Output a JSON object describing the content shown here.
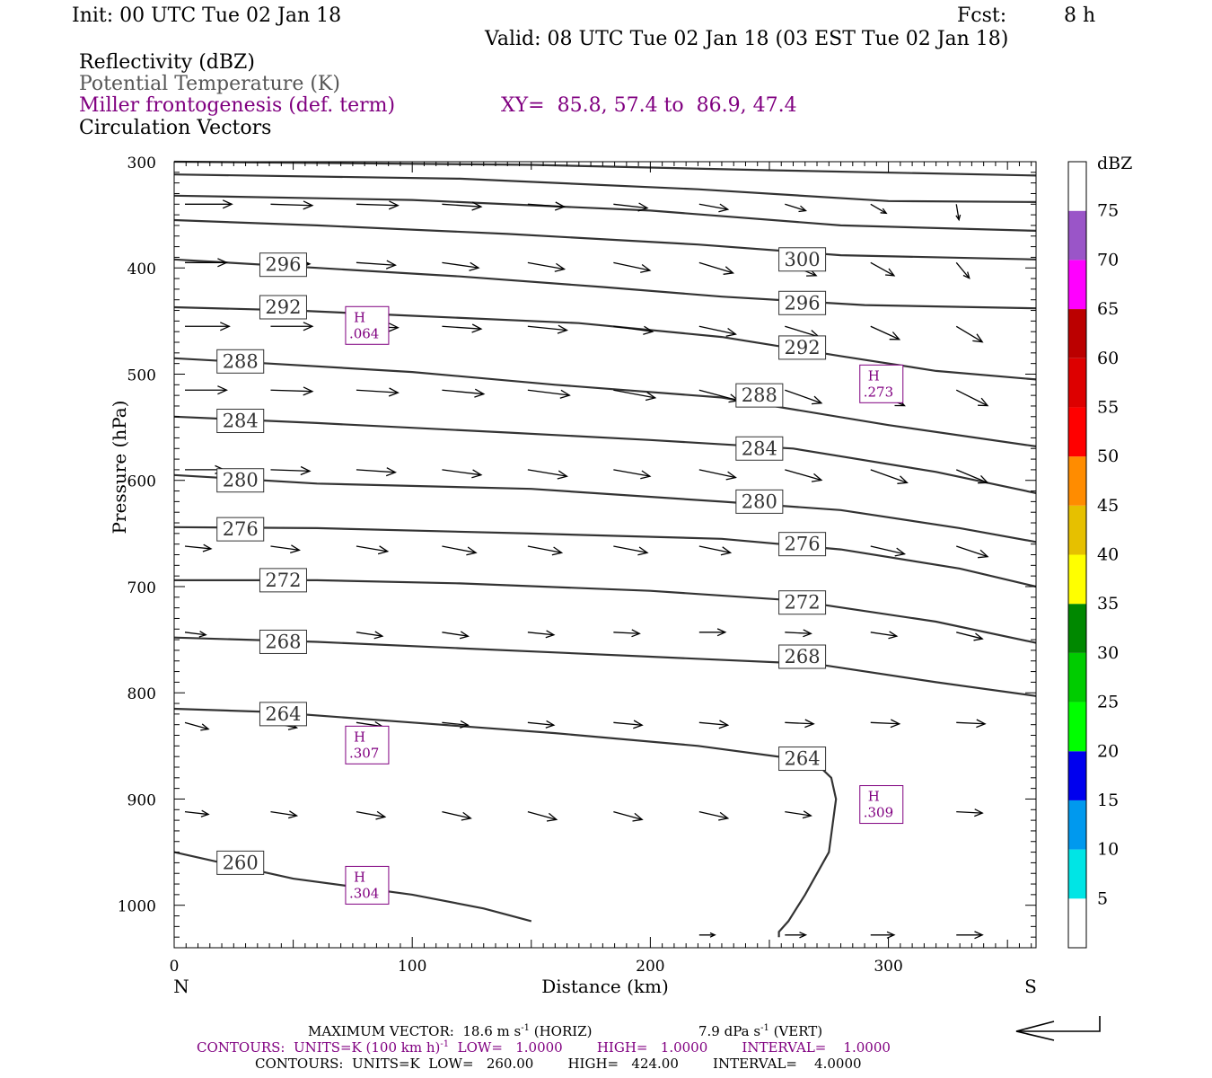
{
  "header": {
    "init": "Init: 00 UTC Tue 02 Jan 18",
    "fcst_label": "Fcst:",
    "fcst_value": "8 h",
    "valid": "Valid: 08 UTC Tue 02 Jan 18 (03 EST Tue 02 Jan 18)"
  },
  "fields": {
    "reflectivity": "Reflectivity (dBZ)",
    "theta": "Potential Temperature (K)",
    "miller": "Miller frontogenesis (def. term)",
    "xy": "XY=  85.8, 57.4 to  86.9, 47.4",
    "circ": "Circulation Vectors"
  },
  "colors": {
    "purple": "#800080",
    "theta_contour": "#333333",
    "vector": "#000000"
  },
  "chart_data": {
    "type": "cross-section",
    "xlabel": "Distance (km)",
    "ylabel": "Pressure (hPa)",
    "x_range": [
      0,
      362
    ],
    "y_range_hpa": [
      300,
      1040
    ],
    "x_ticks": [
      "0",
      "100",
      "200",
      "300"
    ],
    "x_tick_values": [
      0,
      100,
      200,
      300
    ],
    "y_ticks": [
      "300",
      "400",
      "500",
      "600",
      "700",
      "800",
      "900",
      "1000"
    ],
    "y_tick_values": [
      300,
      400,
      500,
      600,
      700,
      800,
      900,
      1000
    ],
    "left_end": "N",
    "right_end": "S",
    "theta_contours": [
      {
        "k": 260,
        "label": "260",
        "pts": [
          [
            0,
            950
          ],
          [
            20,
            960
          ],
          [
            50,
            975
          ],
          [
            100,
            990
          ],
          [
            130,
            1003
          ],
          [
            150,
            1015
          ]
        ],
        "labels_at": [
          [
            18,
            960
          ]
        ]
      },
      {
        "k": 264,
        "label": "264",
        "pts": [
          [
            0,
            815
          ],
          [
            40,
            818
          ],
          [
            100,
            828
          ],
          [
            160,
            838
          ],
          [
            220,
            850
          ],
          [
            260,
            862
          ],
          [
            270,
            867
          ],
          [
            276,
            880
          ],
          [
            278,
            900
          ],
          [
            275,
            950
          ],
          [
            265,
            990
          ],
          [
            258,
            1015
          ],
          [
            254,
            1025
          ],
          [
            254,
            1030
          ]
        ],
        "labels_at": [
          [
            36,
            820
          ],
          [
            254,
            862
          ]
        ]
      },
      {
        "k": 268,
        "label": "268",
        "pts": [
          [
            0,
            748
          ],
          [
            60,
            752
          ],
          [
            120,
            758
          ],
          [
            200,
            766
          ],
          [
            270,
            773
          ],
          [
            320,
            790
          ],
          [
            362,
            803
          ]
        ],
        "labels_at": [
          [
            36,
            752
          ],
          [
            254,
            766
          ]
        ]
      },
      {
        "k": 272,
        "label": "272",
        "pts": [
          [
            0,
            694
          ],
          [
            60,
            694
          ],
          [
            120,
            697
          ],
          [
            200,
            704
          ],
          [
            260,
            713
          ],
          [
            320,
            733
          ],
          [
            362,
            753
          ]
        ],
        "labels_at": [
          [
            36,
            694
          ],
          [
            254,
            715
          ]
        ]
      },
      {
        "k": 276,
        "label": "276",
        "pts": [
          [
            0,
            644
          ],
          [
            60,
            645
          ],
          [
            150,
            650
          ],
          [
            230,
            655
          ],
          [
            280,
            665
          ],
          [
            330,
            683
          ],
          [
            362,
            700
          ]
        ],
        "labels_at": [
          [
            18,
            646
          ],
          [
            254,
            660
          ]
        ]
      },
      {
        "k": 280,
        "label": "280",
        "pts": [
          [
            0,
            595
          ],
          [
            60,
            603
          ],
          [
            150,
            608
          ],
          [
            230,
            620
          ],
          [
            280,
            628
          ],
          [
            330,
            645
          ],
          [
            362,
            658
          ]
        ],
        "labels_at": [
          [
            18,
            600
          ],
          [
            236,
            620
          ]
        ]
      },
      {
        "k": 284,
        "label": "284",
        "pts": [
          [
            0,
            540
          ],
          [
            60,
            546
          ],
          [
            140,
            555
          ],
          [
            200,
            562
          ],
          [
            260,
            570
          ],
          [
            320,
            592
          ],
          [
            362,
            612
          ]
        ],
        "labels_at": [
          [
            18,
            544
          ],
          [
            236,
            570
          ]
        ]
      },
      {
        "k": 288,
        "label": "288",
        "pts": [
          [
            0,
            485
          ],
          [
            40,
            490
          ],
          [
            100,
            498
          ],
          [
            160,
            510
          ],
          [
            230,
            522
          ],
          [
            300,
            548
          ],
          [
            362,
            568
          ]
        ],
        "labels_at": [
          [
            18,
            488
          ],
          [
            236,
            520
          ]
        ]
      },
      {
        "k": 292,
        "label": "292",
        "pts": [
          [
            0,
            437
          ],
          [
            50,
            440
          ],
          [
            100,
            445
          ],
          [
            170,
            452
          ],
          [
            230,
            465
          ],
          [
            280,
            483
          ],
          [
            320,
            497
          ],
          [
            362,
            505
          ]
        ],
        "labels_at": [
          [
            36,
            437
          ],
          [
            254,
            475
          ]
        ]
      },
      {
        "k": 296,
        "label": "296",
        "pts": [
          [
            0,
            392
          ],
          [
            60,
            400
          ],
          [
            120,
            408
          ],
          [
            180,
            418
          ],
          [
            230,
            427
          ],
          [
            290,
            435
          ],
          [
            362,
            438
          ]
        ],
        "labels_at": [
          [
            36,
            397
          ],
          [
            254,
            433
          ]
        ]
      },
      {
        "k": 300,
        "label": "300",
        "pts": [
          [
            0,
            355
          ],
          [
            60,
            360
          ],
          [
            140,
            368
          ],
          [
            220,
            378
          ],
          [
            280,
            388
          ],
          [
            362,
            392
          ]
        ],
        "labels_at": [
          [
            254,
            392
          ]
        ]
      },
      {
        "k": 304,
        "label": "",
        "pts": [
          [
            0,
            332
          ],
          [
            100,
            336
          ],
          [
            200,
            346
          ],
          [
            280,
            360
          ],
          [
            362,
            365
          ]
        ],
        "labels_at": []
      },
      {
        "k": 308,
        "label": "",
        "pts": [
          [
            0,
            312
          ],
          [
            120,
            316
          ],
          [
            220,
            326
          ],
          [
            300,
            337
          ],
          [
            362,
            338
          ]
        ],
        "labels_at": []
      },
      {
        "k": 312,
        "label": "",
        "pts": [
          [
            0,
            300
          ],
          [
            150,
            303
          ],
          [
            250,
            308
          ],
          [
            362,
            313
          ]
        ],
        "labels_at": []
      }
    ],
    "frontogenesis_maxima": [
      {
        "x": 72,
        "p": 455,
        "label": "H",
        "value": ".064"
      },
      {
        "x": 288,
        "p": 510,
        "label": "H",
        "value": ".273"
      },
      {
        "x": 72,
        "p": 850,
        "label": "H",
        "value": ".307"
      },
      {
        "x": 288,
        "p": 906,
        "label": "H",
        "value": ".309"
      },
      {
        "x": 72,
        "p": 982,
        "label": "H",
        "value": ".304"
      }
    ],
    "vectors_grid_x": [
      0,
      36,
      72,
      108,
      144,
      180,
      216,
      252,
      288,
      324
    ],
    "vectors": [
      {
        "p": 340,
        "u": [
          18,
          16,
          16,
          15,
          14,
          13,
          11,
          8,
          6,
          1
        ],
        "w": [
          0,
          -1,
          -1,
          -2,
          -2,
          -3,
          -4,
          -5,
          -7,
          -12
        ]
      },
      {
        "p": 395,
        "u": [
          16,
          15,
          15,
          14,
          14,
          14,
          13,
          12,
          9,
          5
        ],
        "w": [
          0,
          -1,
          -2,
          -4,
          -5,
          -6,
          -8,
          -10,
          -10,
          -12
        ]
      },
      {
        "p": 455,
        "u": [
          17,
          16,
          16,
          15,
          15,
          15,
          14,
          13,
          11,
          10
        ],
        "w": [
          0,
          0,
          -1,
          -2,
          -3,
          -4,
          -6,
          -8,
          -10,
          -12
        ]
      },
      {
        "p": 515,
        "u": [
          16,
          16,
          16,
          16,
          16,
          16,
          15,
          14,
          13,
          12
        ],
        "w": [
          0,
          -1,
          -2,
          -3,
          -4,
          -6,
          -8,
          -10,
          -12,
          -12
        ]
      },
      {
        "p": 590,
        "u": [
          15,
          15,
          15,
          15,
          15,
          14,
          14,
          14,
          14,
          12
        ],
        "w": [
          0,
          -1,
          -2,
          -4,
          -5,
          -5,
          -6,
          -8,
          -10,
          -10
        ]
      },
      {
        "p": 662,
        "u": [
          10,
          11,
          12,
          13,
          13,
          13,
          12,
          13,
          13,
          12
        ],
        "w": [
          -2,
          -3,
          -4,
          -5,
          -5,
          -5,
          -5,
          -5,
          -6,
          -8
        ]
      },
      {
        "p": 743,
        "u": [
          8,
          9,
          10,
          10,
          10,
          10,
          10,
          10,
          10,
          10
        ],
        "w": [
          -2,
          -3,
          -3,
          -3,
          -2,
          -1,
          0,
          -1,
          -3,
          -5
        ]
      },
      {
        "p": 828,
        "u": [
          9,
          10,
          10,
          10,
          10,
          11,
          11,
          11,
          11,
          11
        ],
        "w": [
          -5,
          -4,
          -3,
          -2,
          -2,
          -2,
          -2,
          -1,
          -1,
          -1
        ]
      },
      {
        "p": 912,
        "u": [
          9,
          10,
          11,
          11,
          11,
          11,
          11,
          10,
          10,
          10
        ],
        "w": [
          -2,
          -3,
          -4,
          -5,
          -6,
          -6,
          -5,
          -3,
          -1,
          -1
        ]
      },
      {
        "p": 1028,
        "u": [
          0,
          0,
          0,
          0,
          0,
          0,
          6,
          8,
          9,
          10
        ],
        "w": [
          0,
          0,
          0,
          0,
          0,
          0,
          0,
          0,
          0,
          0
        ]
      }
    ],
    "colorbar": {
      "unit_label": "dBZ",
      "levels": [
        5,
        10,
        15,
        20,
        25,
        30,
        35,
        40,
        45,
        50,
        55,
        60,
        65,
        70,
        75
      ],
      "colors": [
        "#ffffff",
        "#00e5e5",
        "#0099ee",
        "#0000ee",
        "#00ff00",
        "#00cc00",
        "#008800",
        "#ffff00",
        "#e6c000",
        "#ff8c00",
        "#ff0000",
        "#dd0000",
        "#bb0000",
        "#ff00ff",
        "#9a55c8",
        "#ffffff"
      ]
    }
  },
  "footer": {
    "max_vector": "MAXIMUM VECTOR:  18.6 m s",
    "max_vector_sup": "-1",
    "max_vector_horiz": " (HORIZ)",
    "max_vector_vert": "7.9 dPa s",
    "max_vector_vert_sup": "-1",
    "max_vector_vert_tail": " (VERT)",
    "contours1_a": "CONTOURS:  UNITS=K (100 km h)",
    "contours1_sup": "-1",
    "contours1_b": "  LOW=   1.0000        HIGH=   1.0000        INTERVAL=    1.0000",
    "contours2": "CONTOURS:  UNITS=K  LOW=   260.00        HIGH=   424.00        INTERVAL=    4.0000"
  }
}
